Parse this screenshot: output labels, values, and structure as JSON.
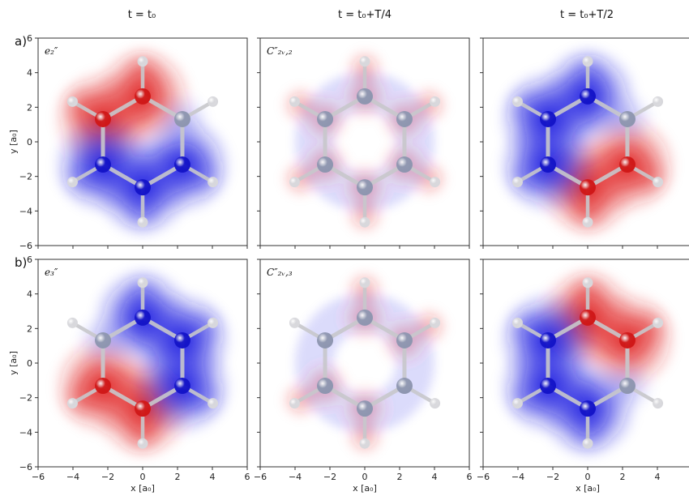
{
  "column_titles": [
    "t = t₀",
    "t = t₀+T/4",
    "t = t₀+T/2"
  ],
  "row_labels": [
    "a)",
    "b)"
  ],
  "panel_labels": [
    [
      "e₂″",
      "C″₂ᵥ,₂",
      ""
    ],
    [
      "e₃″",
      "C″₂ᵥ,₃",
      ""
    ]
  ],
  "axes": {
    "xlabel": "x [a₀]",
    "ylabel": "y [a₀]",
    "xticks_full": [
      "−6",
      "−4",
      "−2",
      "0",
      "2",
      "4",
      "6"
    ],
    "xticks_last": [
      "−6",
      "−4",
      "−2",
      "0",
      "2",
      "4"
    ],
    "yticks": [
      "6",
      "4",
      "2",
      "0",
      "−2",
      "−4",
      "−6"
    ],
    "xlim": [
      -6,
      6
    ],
    "ylim": [
      -6,
      6
    ]
  },
  "colors": {
    "positive": "#e02020",
    "negative": "#1a1ae0",
    "carbon": "#8e96b0",
    "hydrogen": "#d8d8dc",
    "bond": "#c8c8cc"
  },
  "molecule": {
    "carbon_ring_radius": 2.63,
    "hydrogen_radius": 4.65,
    "atom_angles_deg": [
      90,
      30,
      -30,
      -90,
      -150,
      150
    ]
  },
  "densities": [
    [
      {
        "red": [
          90,
          150
        ],
        "blue": [
          -90,
          -30,
          -150
        ],
        "intensity": 1.0,
        "weak_blue_atoms": [
          30
        ],
        "side": "upper-left"
      },
      {
        "red": [
          90,
          -30,
          -150,
          30,
          150,
          -90
        ],
        "blue": [],
        "intensity": 0.25,
        "ring": true
      },
      {
        "red": [
          -90,
          -30
        ],
        "blue": [
          90,
          150,
          -150
        ],
        "intensity": 1.0,
        "weak_blue_atoms": [
          30
        ]
      }
    ],
    [
      {
        "red": [
          -90,
          -150
        ],
        "blue": [
          90,
          30,
          -30
        ],
        "intensity": 1.0,
        "weak_blue_atoms": [
          150
        ]
      },
      {
        "red": [
          90,
          -90,
          -150,
          30
        ],
        "blue": [],
        "intensity": 0.25,
        "ring": true
      },
      {
        "red": [
          90,
          30
        ],
        "blue": [
          150,
          -150,
          -90
        ],
        "intensity": 1.0,
        "weak_blue_atoms": [
          -30
        ]
      }
    ]
  ]
}
